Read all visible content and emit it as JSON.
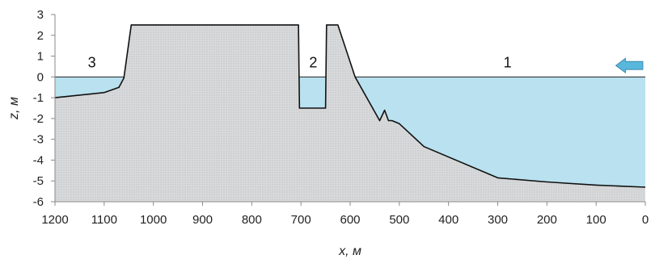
{
  "chart_data": {
    "type": "area",
    "xlabel": "x, м",
    "ylabel": "z, м",
    "xlim": [
      1200,
      0
    ],
    "ylim": [
      -6,
      3
    ],
    "x_reversed": true,
    "x_ticks": [
      1200,
      1100,
      1000,
      900,
      800,
      700,
      600,
      500,
      400,
      300,
      200,
      100,
      0
    ],
    "y_ticks": [
      3,
      2,
      1,
      0,
      -1,
      -2,
      -3,
      -4,
      -5,
      -6
    ],
    "water_level": 0,
    "bed_profile": {
      "x": [
        1200,
        1100,
        1070,
        1060,
        1045,
        1045,
        705,
        703,
        650,
        648,
        640,
        625,
        590,
        540,
        530,
        522,
        515,
        500,
        450,
        300,
        200,
        100,
        0
      ],
      "z": [
        -1.0,
        -0.75,
        -0.5,
        -0.05,
        2.5,
        2.5,
        2.5,
        -1.5,
        -1.5,
        2.5,
        2.5,
        2.5,
        0.0,
        -2.1,
        -1.6,
        -2.1,
        -2.1,
        -2.25,
        -3.35,
        -4.85,
        -5.05,
        -5.2,
        -5.3
      ]
    },
    "zone_labels": [
      {
        "text": "3",
        "x": 1125,
        "z": 0.45
      },
      {
        "text": "2",
        "x": 675,
        "z": 0.45
      },
      {
        "text": "1",
        "x": 280,
        "z": 0.45
      }
    ],
    "flow_arrow": {
      "x_from": 5,
      "x_to": 60,
      "z": 0.55
    },
    "colors": {
      "water": "#b9e1ef",
      "ground": "#d9dadb",
      "ground_outline": "#111111",
      "water_line": "#222222",
      "arrow": "#59b7dc"
    }
  }
}
